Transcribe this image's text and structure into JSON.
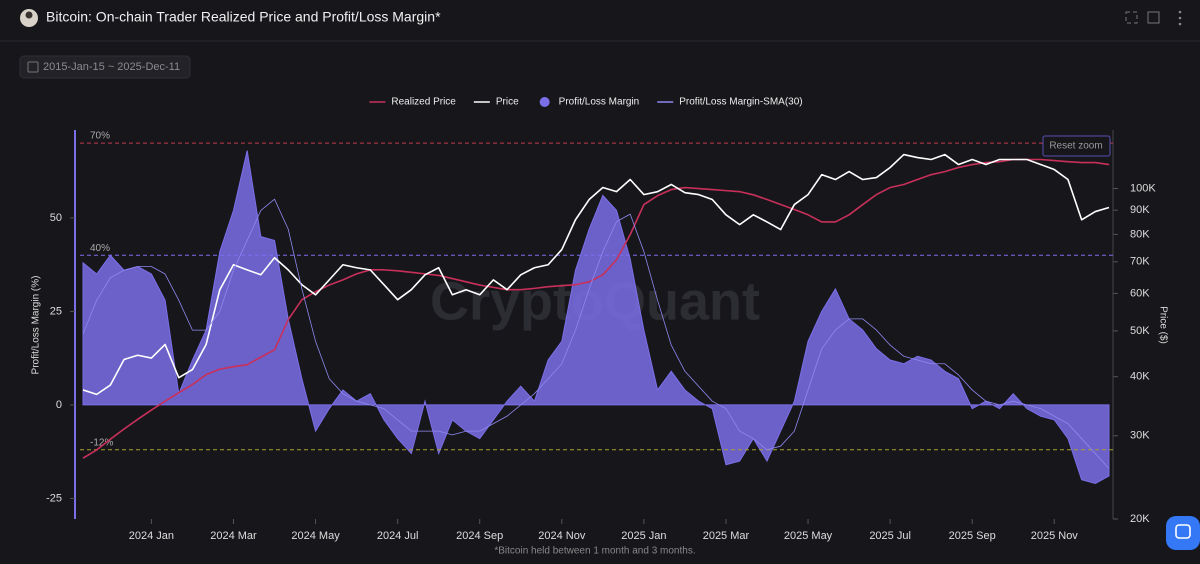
{
  "header": {
    "title": "Bitcoin: On-chain Trader Realized Price and Profit/Loss Margin*",
    "date_range": "2015-Jan-15 ~ 2025-Dec-11",
    "reset_zoom": "Reset zoom",
    "watermark": "CryptoQuant",
    "footnote": "*Bitcoin held between 1 month and 3 months."
  },
  "chart_data": {
    "type": "combo",
    "categories": [
      null,
      null,
      null,
      null,
      null,
      "2024 Jan",
      null,
      null,
      null,
      null,
      null,
      "2024 Mar",
      null,
      null,
      null,
      null,
      null,
      "2024 May",
      null,
      null,
      null,
      null,
      null,
      "2024 Jul",
      null,
      null,
      null,
      null,
      null,
      "2024 Sep",
      null,
      null,
      null,
      null,
      null,
      "2024 Nov",
      null,
      null,
      null,
      null,
      null,
      "2025 Jan",
      null,
      null,
      null,
      null,
      null,
      "2025 Mar",
      null,
      null,
      null,
      null,
      null,
      "2025 May",
      null,
      null,
      null,
      null,
      null,
      "2025 Jul",
      null,
      null,
      null,
      null,
      null,
      "2025 Sep",
      null,
      null,
      null,
      null,
      null,
      "2025 Nov",
      null,
      null,
      null,
      null
    ],
    "y_label": "Profit/Loss Margin (%)",
    "y2_label": "Price ($)",
    "ylim": [
      -30.5,
      73.5
    ],
    "yticks": [
      -25,
      0,
      25,
      50
    ],
    "y2lim": [
      20000,
      133000
    ],
    "y2log": true,
    "y2ticks": [
      {
        "value": 20000,
        "label": "20K"
      },
      {
        "value": 30000,
        "label": "30K"
      },
      {
        "value": 40000,
        "label": "40K"
      },
      {
        "value": 50000,
        "label": "50K"
      },
      {
        "value": 60000,
        "label": "60K"
      },
      {
        "value": 70000,
        "label": "70K"
      },
      {
        "value": 80000,
        "label": "80K"
      },
      {
        "value": 90000,
        "label": "90K"
      },
      {
        "value": 100000,
        "label": "100K"
      }
    ],
    "reference_lines": [
      {
        "value": 70,
        "label": "70%",
        "color": "#c0394f"
      },
      {
        "value": 40,
        "label": "40%",
        "color": "#7a6ff0"
      },
      {
        "value": -12,
        "label": "-12%",
        "color": "#a8a030"
      }
    ],
    "series": [
      {
        "name": "Realized Price",
        "type": "line",
        "axis": "y2",
        "color": "#c8305a",
        "values": [
          26900,
          28000,
          29500,
          31000,
          32500,
          34000,
          35500,
          37000,
          38500,
          40400,
          41500,
          42000,
          42400,
          44000,
          45600,
          52800,
          58200,
          60500,
          62500,
          64100,
          66000,
          67300,
          67300,
          67000,
          66500,
          66000,
          65500,
          64500,
          63500,
          62500,
          61800,
          61100,
          61100,
          61500,
          62000,
          62300,
          62600,
          63500,
          65700,
          70700,
          79900,
          92500,
          96600,
          99500,
          100500,
          100000,
          99500,
          99000,
          98500,
          97000,
          94800,
          92500,
          90300,
          88000,
          85000,
          85000,
          88000,
          92500,
          97100,
          100500,
          102000,
          104500,
          107000,
          108600,
          110800,
          112400,
          113500,
          114000,
          115200,
          115200,
          115200,
          114600,
          114000,
          113500,
          113500,
          112400
        ]
      },
      {
        "name": "Price",
        "type": "line",
        "axis": "y2",
        "color": "#ffffff",
        "values": [
          37500,
          36700,
          38400,
          43500,
          44400,
          43800,
          46800,
          39800,
          41400,
          46800,
          61100,
          69000,
          67300,
          65700,
          71400,
          67300,
          62600,
          59600,
          64100,
          69000,
          68000,
          67300,
          62600,
          58200,
          61100,
          65700,
          68000,
          59600,
          61100,
          59600,
          64100,
          61100,
          65700,
          68000,
          69000,
          74300,
          85900,
          94800,
          100500,
          98500,
          104500,
          97100,
          98500,
          102000,
          98000,
          97100,
          94800,
          88000,
          83900,
          88000,
          85000,
          81900,
          92500,
          97100,
          107000,
          104500,
          108600,
          104500,
          105500,
          110800,
          118000,
          116300,
          115200,
          118000,
          112400,
          115200,
          112400,
          115200,
          115200,
          115200,
          112400,
          109700,
          104500,
          85900,
          89400,
          91200
        ]
      },
      {
        "name": "Profit/Loss Margin",
        "type": "area",
        "axis": "y",
        "color": "#7b6fe8",
        "values": [
          38,
          35,
          40,
          36,
          37,
          35,
          28,
          3,
          12,
          20,
          41,
          52,
          68,
          45,
          44,
          23,
          7,
          -7,
          -1,
          4,
          1,
          3,
          -4,
          -9,
          -13,
          1,
          -13,
          -4,
          -7,
          -9,
          -4,
          1,
          5,
          1,
          12,
          17,
          36,
          47,
          56,
          52,
          39,
          20,
          4,
          9,
          4,
          1,
          -1,
          -16,
          -15,
          -9,
          -15,
          -7,
          1,
          17,
          25,
          31,
          23,
          20,
          15,
          12,
          11,
          13,
          12,
          9,
          7,
          -1,
          1,
          -1,
          3,
          -1,
          -3,
          -4,
          -9,
          -20,
          -21,
          -19
        ]
      },
      {
        "name": "Profit/Loss Margin-SMA(30)",
        "type": "line",
        "axis": "y",
        "color": "#8f88f0",
        "values": [
          19,
          28,
          34,
          36,
          37,
          37,
          35,
          28,
          20,
          20,
          25,
          36,
          44,
          52,
          55,
          47,
          31,
          17,
          7,
          3,
          1,
          0,
          -1,
          -4,
          -7,
          -7,
          -7,
          -8,
          -7,
          -7,
          -5,
          -3,
          0,
          3,
          7,
          11,
          20,
          31,
          41,
          49,
          51,
          41,
          28,
          16,
          9,
          5,
          1,
          -1,
          -7,
          -9,
          -12,
          -11,
          -7,
          4,
          15,
          20,
          23,
          23,
          20,
          16,
          13,
          12,
          11,
          11,
          8,
          4,
          1,
          0,
          1,
          0,
          -1,
          -3,
          -5,
          -9,
          -13,
          -17
        ]
      }
    ]
  }
}
